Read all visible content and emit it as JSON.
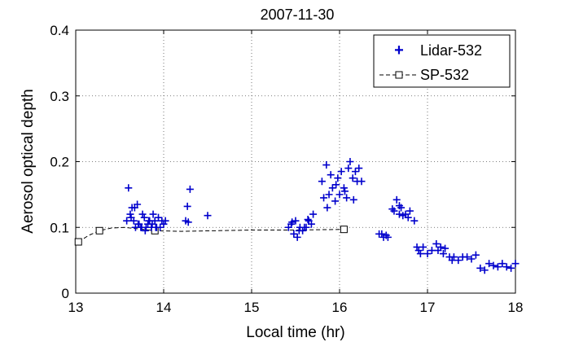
{
  "chart_data": {
    "type": "scatter",
    "title": "2007-11-30",
    "xlabel": "Local time (hr)",
    "ylabel": "Aerosol optical depth",
    "xlim": [
      13,
      18
    ],
    "ylim": [
      0,
      0.4
    ],
    "xticks": [
      "13",
      "14",
      "15",
      "16",
      "17",
      "18"
    ],
    "yticks": [
      "0",
      "0.1",
      "0.2",
      "0.3",
      "0.4"
    ],
    "grid": true,
    "legend_position": "top-right",
    "series": [
      {
        "name": "Lidar-532",
        "marker": "plus",
        "color": "#0000cc",
        "x": [
          13.58,
          13.6,
          13.62,
          13.64,
          13.66,
          13.68,
          13.7,
          13.72,
          13.74,
          13.76,
          13.78,
          13.8,
          13.82,
          13.84,
          13.86,
          13.88,
          13.9,
          13.92,
          13.94,
          13.96,
          13.98,
          14.0,
          14.02,
          13.63,
          13.67,
          13.71,
          13.75,
          13.79,
          13.83,
          13.87,
          13.91,
          14.25,
          14.27,
          14.3,
          14.28,
          14.5,
          15.42,
          15.45,
          15.48,
          15.5,
          15.52,
          15.55,
          15.58,
          15.6,
          15.62,
          15.65,
          15.68,
          15.7,
          15.46,
          15.54,
          15.64,
          15.8,
          15.82,
          15.85,
          15.88,
          15.9,
          15.92,
          15.95,
          15.98,
          16.0,
          16.02,
          16.05,
          16.08,
          16.1,
          16.12,
          16.15,
          16.18,
          16.2,
          16.22,
          16.25,
          15.86,
          15.96,
          16.06,
          16.16,
          16.45,
          16.48,
          16.5,
          16.53,
          16.55,
          16.6,
          16.62,
          16.65,
          16.68,
          16.7,
          16.72,
          16.75,
          16.78,
          16.8,
          16.68,
          16.85,
          16.88,
          16.9,
          16.92,
          16.95,
          17.0,
          17.05,
          17.1,
          17.12,
          17.15,
          17.18,
          17.2,
          17.25,
          17.28,
          17.3,
          17.35,
          17.4,
          17.45,
          17.5,
          17.55,
          17.6,
          17.65,
          17.7,
          17.75,
          17.8,
          17.85,
          17.9,
          17.95,
          18.0
        ],
        "y": [
          0.11,
          0.16,
          0.12,
          0.13,
          0.11,
          0.1,
          0.135,
          0.105,
          0.1,
          0.12,
          0.115,
          0.1,
          0.105,
          0.11,
          0.1,
          0.12,
          0.11,
          0.1,
          0.115,
          0.1,
          0.11,
          0.105,
          0.11,
          0.115,
          0.13,
          0.105,
          0.1,
          0.095,
          0.11,
          0.105,
          0.1,
          0.11,
          0.132,
          0.158,
          0.108,
          0.118,
          0.1,
          0.105,
          0.09,
          0.11,
          0.085,
          0.1,
          0.095,
          0.1,
          0.1,
          0.11,
          0.105,
          0.12,
          0.108,
          0.095,
          0.112,
          0.17,
          0.145,
          0.195,
          0.15,
          0.18,
          0.16,
          0.14,
          0.175,
          0.15,
          0.185,
          0.16,
          0.145,
          0.19,
          0.2,
          0.175,
          0.185,
          0.17,
          0.19,
          0.17,
          0.13,
          0.165,
          0.155,
          0.142,
          0.09,
          0.09,
          0.085,
          0.088,
          0.085,
          0.128,
          0.125,
          0.142,
          0.12,
          0.13,
          0.118,
          0.12,
          0.115,
          0.125,
          0.133,
          0.11,
          0.07,
          0.065,
          0.06,
          0.07,
          0.06,
          0.065,
          0.075,
          0.065,
          0.07,
          0.06,
          0.068,
          0.055,
          0.05,
          0.055,
          0.05,
          0.055,
          0.055,
          0.052,
          0.058,
          0.038,
          0.035,
          0.045,
          0.042,
          0.04,
          0.045,
          0.04,
          0.038,
          0.045
        ],
        "symbol_label": "+"
      },
      {
        "name": "SP-532",
        "marker": "square",
        "line": "dashed",
        "color": "#000000",
        "x": [
          13.03,
          13.27,
          13.9,
          16.05
        ],
        "y": [
          0.078,
          0.095,
          0.095,
          0.097
        ],
        "smooth_x": [
          13.03,
          13.15,
          13.27,
          13.4,
          13.55,
          13.7,
          13.9,
          14.2,
          14.6,
          15.0,
          15.5,
          16.05
        ],
        "smooth_y": [
          0.078,
          0.088,
          0.095,
          0.099,
          0.1,
          0.098,
          0.095,
          0.094,
          0.095,
          0.096,
          0.096,
          0.097
        ]
      }
    ]
  }
}
